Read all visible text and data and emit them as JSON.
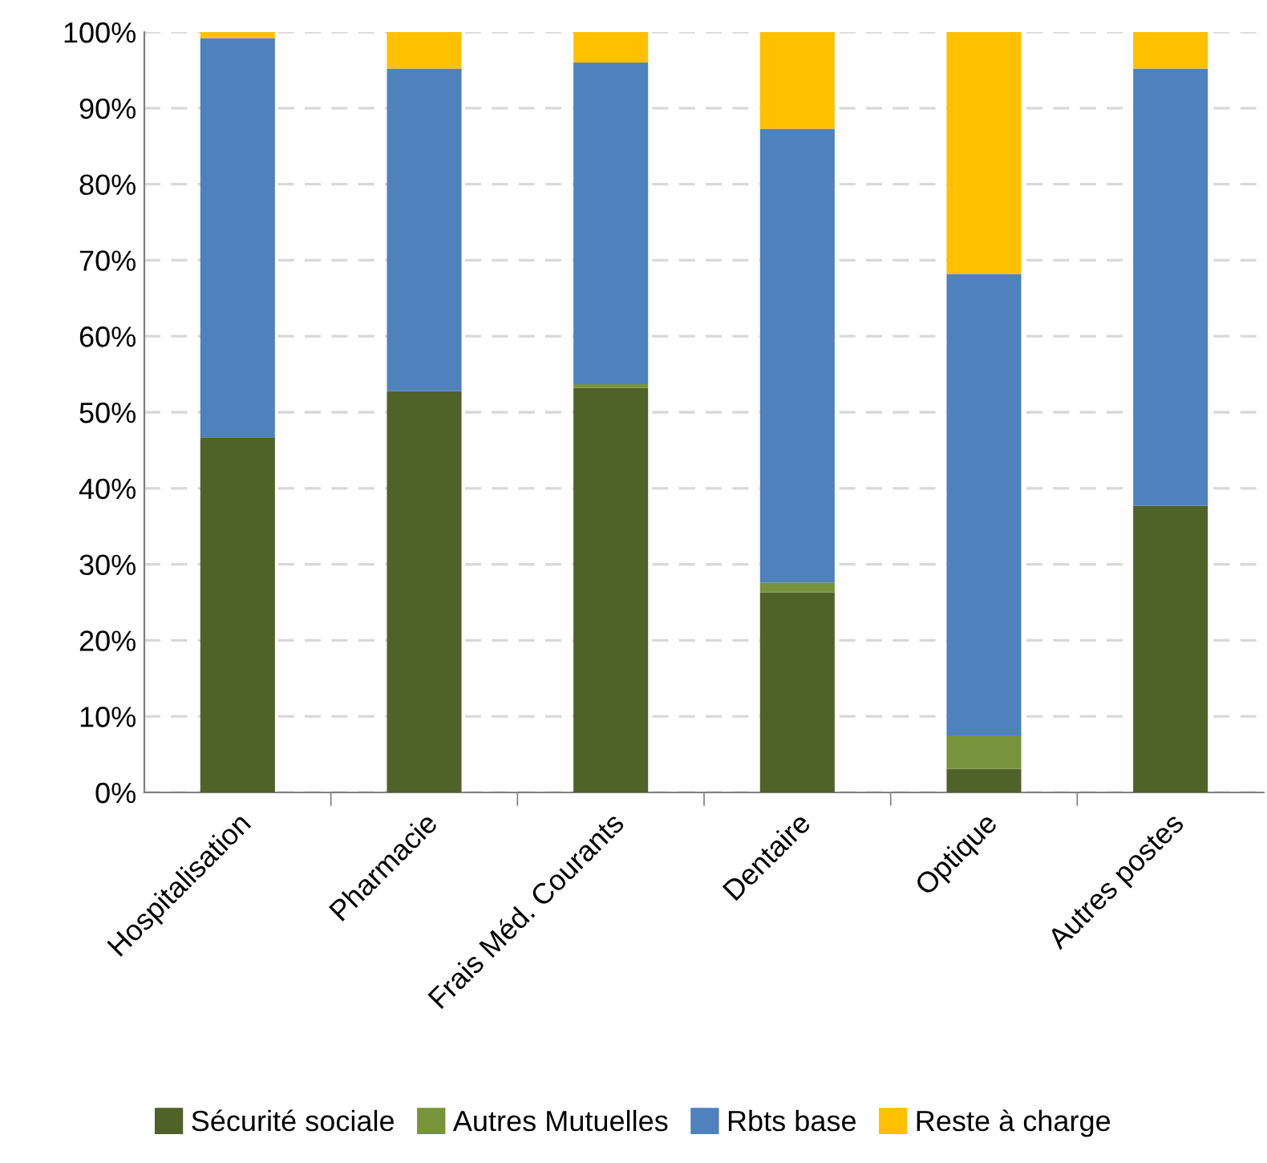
{
  "chart_data": {
    "type": "bar",
    "stacked": true,
    "categories": [
      "Hospitalisation",
      "Pharmacie",
      "Frais Méd. Courants",
      "Dentaire",
      "Optique",
      "Autres postes"
    ],
    "series": [
      {
        "name": "Sécurité sociale",
        "color": "#4f6228",
        "values": [
          46.7,
          52.8,
          53.2,
          26.3,
          3.1,
          37.7
        ]
      },
      {
        "name": "Autres Mutuelles",
        "color": "#77933c",
        "values": [
          0,
          0,
          0.5,
          1.3,
          4.4,
          0
        ]
      },
      {
        "name": "Rbts base",
        "color": "#4f81bd",
        "values": [
          52.5,
          42.4,
          42.3,
          59.7,
          60.7,
          57.5
        ]
      },
      {
        "name": "Reste à charge",
        "color": "#ffc000",
        "values": [
          0.8,
          4.8,
          4.0,
          12.7,
          31.8,
          4.8
        ]
      }
    ],
    "ylim": [
      0,
      100
    ],
    "yticks": [
      {
        "value": 0,
        "label": "0%"
      },
      {
        "value": 10,
        "label": "10%"
      },
      {
        "value": 20,
        "label": "20%"
      },
      {
        "value": 30,
        "label": "30%"
      },
      {
        "value": 40,
        "label": "40%"
      },
      {
        "value": 50,
        "label": "50%"
      },
      {
        "value": 60,
        "label": "60%"
      },
      {
        "value": 70,
        "label": "70%"
      },
      {
        "value": 80,
        "label": "80%"
      },
      {
        "value": 90,
        "label": "90%"
      },
      {
        "value": 100,
        "label": "100%"
      }
    ],
    "grid": "y",
    "legend": "bottom"
  }
}
